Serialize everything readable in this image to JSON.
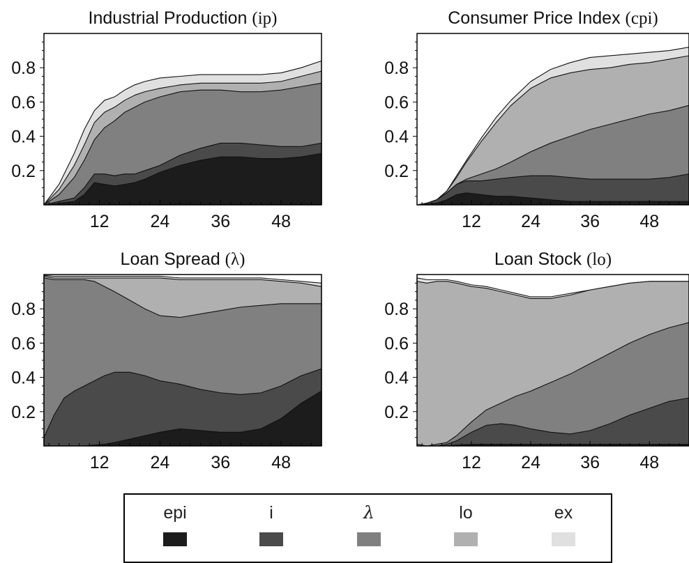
{
  "chart_data": [
    {
      "type": "area",
      "stacked": true,
      "title": "Industrial Production (ip)",
      "title_parts": [
        "Industrial Production ",
        "(ip)"
      ],
      "x": [
        1,
        4,
        7,
        9,
        11,
        13,
        15,
        17,
        19,
        21,
        24,
        28,
        32,
        36,
        40,
        44,
        48,
        52,
        56
      ],
      "xticks": [
        12,
        24,
        36,
        48
      ],
      "yticks": [
        0.2,
        0.4,
        0.6,
        0.8
      ],
      "xlim": [
        1,
        56
      ],
      "ylim": [
        0,
        1
      ],
      "series": [
        {
          "name": "epi",
          "values": [
            0,
            0.01,
            0.02,
            0.06,
            0.13,
            0.12,
            0.11,
            0.12,
            0.13,
            0.15,
            0.19,
            0.23,
            0.26,
            0.28,
            0.28,
            0.27,
            0.27,
            0.28,
            0.3
          ]
        },
        {
          "name": "i",
          "values": [
            0,
            0.02,
            0.04,
            0.1,
            0.18,
            0.18,
            0.17,
            0.18,
            0.18,
            0.2,
            0.23,
            0.29,
            0.33,
            0.36,
            0.36,
            0.35,
            0.34,
            0.34,
            0.36
          ]
        },
        {
          "name": "λ",
          "values": [
            0,
            0.06,
            0.16,
            0.26,
            0.38,
            0.45,
            0.49,
            0.54,
            0.57,
            0.6,
            0.63,
            0.66,
            0.67,
            0.67,
            0.66,
            0.66,
            0.67,
            0.69,
            0.71
          ]
        },
        {
          "name": "lo",
          "values": [
            0,
            0.09,
            0.23,
            0.35,
            0.48,
            0.54,
            0.57,
            0.61,
            0.64,
            0.66,
            0.68,
            0.7,
            0.71,
            0.71,
            0.71,
            0.71,
            0.72,
            0.75,
            0.78
          ]
        },
        {
          "name": "ex",
          "values": [
            0,
            0.12,
            0.3,
            0.44,
            0.55,
            0.61,
            0.63,
            0.67,
            0.7,
            0.72,
            0.74,
            0.75,
            0.76,
            0.76,
            0.76,
            0.76,
            0.77,
            0.8,
            0.84
          ]
        }
      ]
    },
    {
      "type": "area",
      "stacked": true,
      "title": "Consumer Price Index (cpi)",
      "title_parts": [
        "Consumer Price Index ",
        "(cpi)"
      ],
      "x": [
        1,
        3,
        5,
        7,
        9,
        11,
        14,
        17,
        20,
        24,
        28,
        32,
        36,
        40,
        44,
        48,
        52,
        56
      ],
      "xticks": [
        12,
        24,
        36,
        48
      ],
      "yticks": [
        0.2,
        0.4,
        0.6,
        0.8
      ],
      "xlim": [
        1,
        56
      ],
      "ylim": [
        0,
        1
      ],
      "series": [
        {
          "name": "epi",
          "values": [
            0,
            0.005,
            0.01,
            0.03,
            0.06,
            0.07,
            0.06,
            0.05,
            0.05,
            0.04,
            0.03,
            0.02,
            0.02,
            0.02,
            0.02,
            0.02,
            0.02,
            0.02
          ]
        },
        {
          "name": "i",
          "values": [
            0,
            0.01,
            0.03,
            0.07,
            0.12,
            0.14,
            0.14,
            0.15,
            0.16,
            0.17,
            0.17,
            0.16,
            0.15,
            0.15,
            0.15,
            0.15,
            0.16,
            0.18
          ]
        },
        {
          "name": "λ",
          "values": [
            0,
            0.01,
            0.03,
            0.07,
            0.12,
            0.15,
            0.18,
            0.21,
            0.25,
            0.31,
            0.36,
            0.4,
            0.44,
            0.47,
            0.5,
            0.53,
            0.55,
            0.58
          ]
        },
        {
          "name": "lo",
          "values": [
            0,
            0.01,
            0.03,
            0.08,
            0.16,
            0.25,
            0.37,
            0.48,
            0.58,
            0.68,
            0.74,
            0.77,
            0.79,
            0.8,
            0.82,
            0.83,
            0.85,
            0.87
          ]
        },
        {
          "name": "ex",
          "values": [
            0,
            0.01,
            0.03,
            0.08,
            0.17,
            0.26,
            0.39,
            0.51,
            0.61,
            0.72,
            0.79,
            0.83,
            0.86,
            0.87,
            0.88,
            0.89,
            0.9,
            0.92
          ]
        }
      ]
    },
    {
      "type": "area",
      "stacked": true,
      "title": "Loan Spread (λ)",
      "title_parts": [
        "Loan Spread ",
        "(λ)"
      ],
      "x": [
        1,
        3,
        5,
        7,
        9,
        11,
        13,
        15,
        18,
        21,
        24,
        28,
        32,
        36,
        40,
        44,
        48,
        52,
        56
      ],
      "xticks": [
        12,
        24,
        36,
        48
      ],
      "yticks": [
        0.2,
        0.4,
        0.6,
        0.8
      ],
      "xlim": [
        1,
        56
      ],
      "ylim": [
        0,
        1
      ],
      "series": [
        {
          "name": "epi",
          "values": [
            0,
            0,
            0,
            0,
            0,
            0.005,
            0.01,
            0.02,
            0.04,
            0.06,
            0.08,
            0.1,
            0.09,
            0.08,
            0.08,
            0.1,
            0.16,
            0.25,
            0.32
          ]
        },
        {
          "name": "i",
          "values": [
            0.05,
            0.18,
            0.28,
            0.32,
            0.35,
            0.38,
            0.41,
            0.43,
            0.43,
            0.41,
            0.38,
            0.36,
            0.33,
            0.31,
            0.3,
            0.31,
            0.35,
            0.41,
            0.45
          ]
        },
        {
          "name": "λ",
          "values": [
            0.98,
            0.97,
            0.97,
            0.97,
            0.97,
            0.96,
            0.93,
            0.9,
            0.85,
            0.8,
            0.76,
            0.75,
            0.77,
            0.79,
            0.81,
            0.82,
            0.83,
            0.83,
            0.83
          ]
        },
        {
          "name": "lo",
          "values": [
            0.99,
            0.98,
            0.98,
            0.98,
            0.98,
            0.98,
            0.98,
            0.98,
            0.98,
            0.98,
            0.98,
            0.97,
            0.97,
            0.97,
            0.97,
            0.97,
            0.96,
            0.95,
            0.93
          ]
        },
        {
          "name": "ex",
          "values": [
            0.995,
            0.99,
            0.99,
            0.99,
            0.99,
            0.99,
            0.99,
            0.99,
            0.99,
            0.99,
            0.99,
            0.98,
            0.98,
            0.98,
            0.98,
            0.98,
            0.97,
            0.96,
            0.95
          ]
        }
      ]
    },
    {
      "type": "area",
      "stacked": true,
      "title": "Loan Stock (lo)",
      "title_parts": [
        "Loan Stock ",
        "(lo)"
      ],
      "x": [
        1,
        3,
        5,
        7,
        9,
        12,
        15,
        18,
        21,
        24,
        28,
        32,
        36,
        40,
        44,
        48,
        52,
        56
      ],
      "xticks": [
        12,
        24,
        36,
        48
      ],
      "yticks": [
        0.2,
        0.4,
        0.6,
        0.8
      ],
      "xlim": [
        1,
        56
      ],
      "ylim": [
        0,
        1
      ],
      "series": [
        {
          "name": "epi",
          "values": [
            0,
            0,
            0,
            0,
            0.005,
            0.01,
            0.01,
            0.01,
            0.01,
            0.01,
            0.01,
            0.01,
            0.01,
            0.01,
            0.01,
            0.01,
            0.01,
            0.01
          ]
        },
        {
          "name": "i",
          "values": [
            0,
            0,
            0,
            0.01,
            0.03,
            0.08,
            0.12,
            0.13,
            0.12,
            0.1,
            0.08,
            0.07,
            0.09,
            0.13,
            0.18,
            0.22,
            0.26,
            0.28
          ]
        },
        {
          "name": "λ",
          "values": [
            0.01,
            0,
            0.01,
            0.02,
            0.06,
            0.14,
            0.21,
            0.25,
            0.29,
            0.32,
            0.37,
            0.42,
            0.48,
            0.54,
            0.6,
            0.65,
            0.69,
            0.72
          ]
        },
        {
          "name": "lo",
          "values": [
            0.96,
            0.95,
            0.96,
            0.96,
            0.95,
            0.93,
            0.92,
            0.9,
            0.88,
            0.86,
            0.86,
            0.88,
            0.91,
            0.93,
            0.95,
            0.96,
            0.96,
            0.96
          ]
        },
        {
          "name": "ex",
          "values": [
            0.98,
            0.97,
            0.97,
            0.97,
            0.96,
            0.94,
            0.93,
            0.91,
            0.89,
            0.87,
            0.87,
            0.89,
            0.91,
            0.93,
            0.95,
            0.96,
            0.96,
            0.96
          ]
        }
      ]
    }
  ],
  "legend": {
    "items": [
      {
        "label": "epi",
        "color": "#1c1c1c"
      },
      {
        "label": "i",
        "color": "#4a4a4a"
      },
      {
        "label": "λ",
        "color": "#808080"
      },
      {
        "label": "lo",
        "color": "#b0b0b0"
      },
      {
        "label": "ex",
        "color": "#e0e0e0"
      }
    ]
  }
}
